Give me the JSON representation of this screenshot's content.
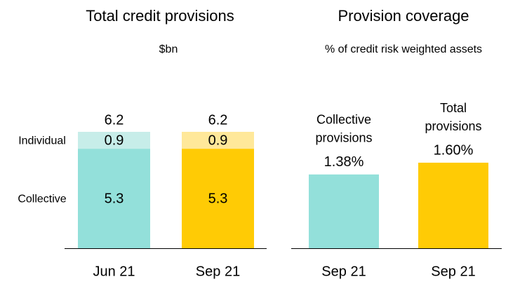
{
  "chart_data": [
    {
      "type": "stacked_bar",
      "title": "Total credit provisions",
      "subtitle": "$bn",
      "categories": [
        "Jun 21",
        "Sep 21"
      ],
      "series": [
        {
          "name": "Collective",
          "colors": [
            "#93e0da",
            "#ffcb05"
          ],
          "values": [
            5.3,
            5.3
          ]
        },
        {
          "name": "Individual",
          "colors": [
            "#c7ede9",
            "#ffe89a"
          ],
          "values": [
            0.9,
            0.9
          ]
        }
      ],
      "totals": [
        6.2,
        6.2
      ]
    },
    {
      "type": "bar",
      "title": "Provision coverage",
      "subtitle": "% of credit risk weighted assets",
      "categories": [
        "Sep 21",
        "Sep 21"
      ],
      "bar_labels": [
        [
          "Collective",
          "provisions"
        ],
        [
          "Total",
          "provisions"
        ]
      ],
      "values": [
        1.38,
        1.6
      ],
      "value_labels": [
        "1.38%",
        "1.60%"
      ],
      "colors": [
        "#93e0da",
        "#ffcb05"
      ]
    }
  ]
}
